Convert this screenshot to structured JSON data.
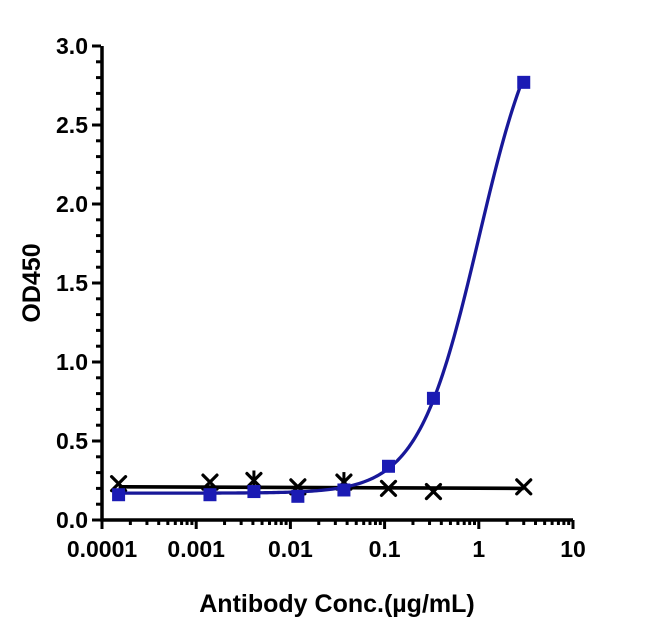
{
  "chart_data": {
    "type": "line",
    "title": "",
    "xlabel": "Antibody Conc.(µg/mL)",
    "ylabel": "OD450",
    "x_scale": "log10",
    "xlim": [
      0.0001,
      10
    ],
    "ylim": [
      0.0,
      3.0
    ],
    "x_major_ticks": [
      0.0001,
      0.001,
      0.01,
      0.1,
      1,
      10
    ],
    "x_tick_labels": [
      "0.0001",
      "0.001",
      "0.01",
      "0.1",
      "1",
      "10"
    ],
    "y_major_ticks": [
      0.0,
      0.5,
      1.0,
      1.5,
      2.0,
      2.5,
      3.0
    ],
    "y_tick_labels": [
      "0.0",
      "0.5",
      "1.0",
      "1.5",
      "2.0",
      "2.5",
      "3.0"
    ],
    "y_minor_step": 0.1,
    "grid": false,
    "legend": "none",
    "axis_color": "#000000",
    "series": [
      {
        "name": "negative-control-black-x",
        "marker": "x-cross",
        "marker_color": "#000000",
        "line_color": "#000000",
        "curve": "flat-line-fit",
        "fit_line": {
          "x1": 0.00015,
          "y1": 0.21,
          "x2": 3.0,
          "y2": 0.2
        },
        "x": [
          0.00015,
          0.0014,
          0.0041,
          0.012,
          0.037,
          0.11,
          0.33,
          3.0
        ],
        "y": [
          0.23,
          0.24,
          0.25,
          0.21,
          0.24,
          0.2,
          0.18,
          0.21
        ],
        "stem_point_indices": [
          2,
          4
        ]
      },
      {
        "name": "antibody-binding-blue-squares",
        "marker": "filled-square",
        "marker_color": "#1b1bb4",
        "line_color": "#181899",
        "curve": "4pl-sigmoid-fit",
        "fit": {
          "bottom": 0.17,
          "top": 3.4,
          "ec50": 1.0,
          "hill": 1.35,
          "x_start": 0.00015,
          "x_end": 3.0
        },
        "x": [
          0.00015,
          0.0014,
          0.0041,
          0.012,
          0.037,
          0.11,
          0.33,
          3.0
        ],
        "y": [
          0.16,
          0.16,
          0.18,
          0.15,
          0.19,
          0.34,
          0.77,
          2.77
        ]
      }
    ]
  }
}
